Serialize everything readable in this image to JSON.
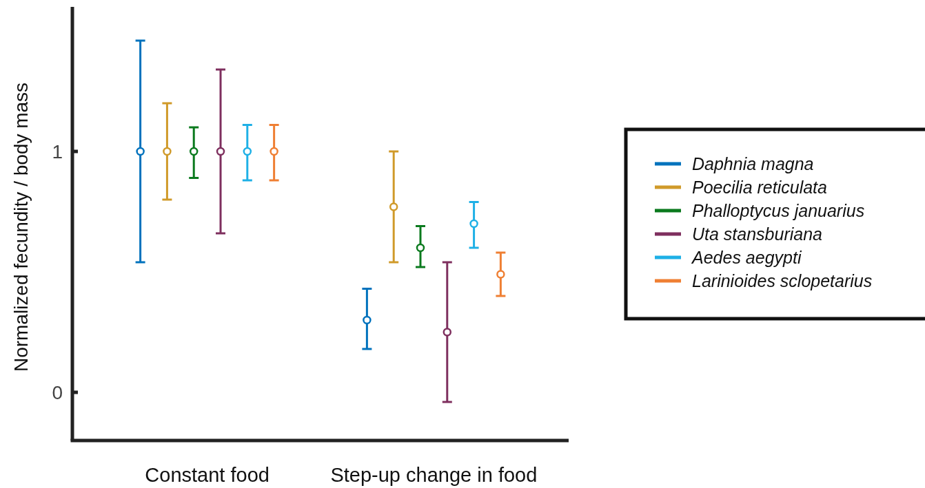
{
  "chart_data": {
    "type": "scatter",
    "ylabel": "Normalized fecundity / body mass",
    "categories": [
      "Constant food",
      "Step-up change in food"
    ],
    "ylim": [
      -0.2,
      1.6
    ],
    "yticks": [
      0,
      1
    ],
    "marker": "circle",
    "legend": "right",
    "series": [
      {
        "name": "Daphnia magna",
        "color": "#0072bd",
        "values": [
          1,
          0.3
        ],
        "errors": [
          [
            0.54,
            1.46
          ],
          [
            0.18,
            0.43
          ]
        ]
      },
      {
        "name": "Poecilia reticulata",
        "color": "#d09a2a",
        "values": [
          1,
          0.77
        ],
        "errors": [
          [
            0.8,
            1.2
          ],
          [
            0.54,
            1.0
          ]
        ]
      },
      {
        "name": "Phalloptycus januarius",
        "color": "#0b7a1e",
        "values": [
          1,
          0.6
        ],
        "errors": [
          [
            0.89,
            1.1
          ],
          [
            0.52,
            0.69
          ]
        ]
      },
      {
        "name": "Uta stansburiana",
        "color": "#7e2f5e",
        "values": [
          1,
          0.25
        ],
        "errors": [
          [
            0.66,
            1.34
          ],
          [
            -0.04,
            0.54
          ]
        ]
      },
      {
        "name": "Aedes aegypti",
        "color": "#1eb0e6",
        "values": [
          1,
          0.7
        ],
        "errors": [
          [
            0.88,
            1.11
          ],
          [
            0.6,
            0.79
          ]
        ]
      },
      {
        "name": "Larinioides sclopetarius",
        "color": "#ef7f33",
        "values": [
          1,
          0.49
        ],
        "errors": [
          [
            0.88,
            1.11
          ],
          [
            0.4,
            0.58
          ]
        ]
      }
    ]
  }
}
